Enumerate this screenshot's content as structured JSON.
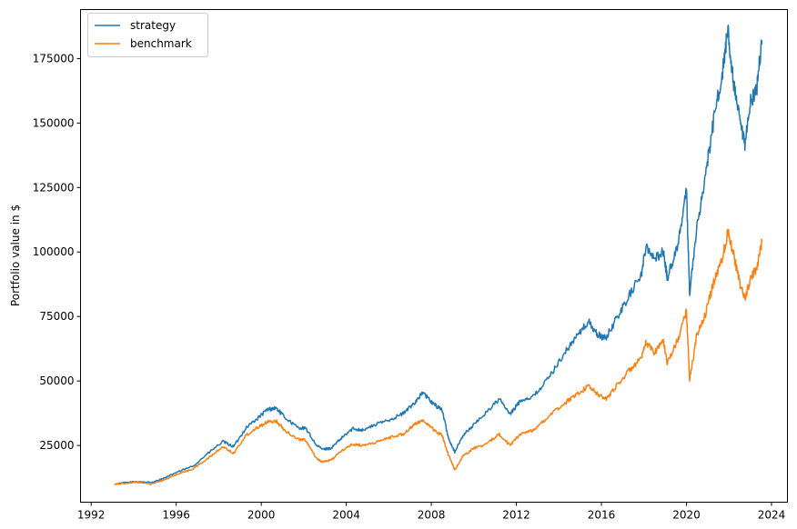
{
  "chart_data": {
    "type": "line",
    "title": "",
    "xlabel": "",
    "ylabel": "Portfolio value in $",
    "xlim": [
      1991.5,
      2024.75
    ],
    "ylim": [
      3000,
      194000
    ],
    "x_ticks": [
      1992,
      1996,
      2000,
      2004,
      2008,
      2012,
      2016,
      2020,
      2024
    ],
    "x_tick_labels": [
      "1992",
      "1996",
      "2000",
      "2004",
      "2008",
      "2012",
      "2016",
      "2020",
      "2024"
    ],
    "y_ticks": [
      25000,
      50000,
      75000,
      100000,
      125000,
      150000,
      175000
    ],
    "y_tick_labels": [
      "25000",
      "50000",
      "75000",
      "100000",
      "125000",
      "150000",
      "175000"
    ],
    "grid": false,
    "legend_position": "top-left",
    "colors": {
      "strategy": "#1f77b4",
      "benchmark": "#ff7f0e"
    },
    "series": [
      {
        "name": "strategy",
        "color": "#1f77b4",
        "points": [
          [
            1993.1,
            10000
          ],
          [
            1993.6,
            10600
          ],
          [
            1994.2,
            11000
          ],
          [
            1994.8,
            10600
          ],
          [
            1995.5,
            12500
          ],
          [
            1996.0,
            14500
          ],
          [
            1996.8,
            17000
          ],
          [
            1997.5,
            22000
          ],
          [
            1998.2,
            26500
          ],
          [
            1998.7,
            24500
          ],
          [
            1999.3,
            32000
          ],
          [
            1999.9,
            36000
          ],
          [
            2000.3,
            39000
          ],
          [
            2000.7,
            39500
          ],
          [
            2001.1,
            36000
          ],
          [
            2001.7,
            32000
          ],
          [
            2002.1,
            31500
          ],
          [
            2002.6,
            25000
          ],
          [
            2002.9,
            23500
          ],
          [
            2003.3,
            24000
          ],
          [
            2003.8,
            28000
          ],
          [
            2004.3,
            31500
          ],
          [
            2004.8,
            31000
          ],
          [
            2005.5,
            33500
          ],
          [
            2006.2,
            35500
          ],
          [
            2006.7,
            37500
          ],
          [
            2007.2,
            41500
          ],
          [
            2007.6,
            45500
          ],
          [
            2008.1,
            41000
          ],
          [
            2008.5,
            39000
          ],
          [
            2008.8,
            28000
          ],
          [
            2009.1,
            22500
          ],
          [
            2009.5,
            29000
          ],
          [
            2010.0,
            33000
          ],
          [
            2010.6,
            38000
          ],
          [
            2011.2,
            43000
          ],
          [
            2011.7,
            37000
          ],
          [
            2012.2,
            42500
          ],
          [
            2012.8,
            44000
          ],
          [
            2013.5,
            51000
          ],
          [
            2014.2,
            60000
          ],
          [
            2014.8,
            67000
          ],
          [
            2015.4,
            73000
          ],
          [
            2015.8,
            68000
          ],
          [
            2016.2,
            66500
          ],
          [
            2016.7,
            74000
          ],
          [
            2017.3,
            83000
          ],
          [
            2017.9,
            92000
          ],
          [
            2018.1,
            103000
          ],
          [
            2018.5,
            97000
          ],
          [
            2018.9,
            100500
          ],
          [
            2019.1,
            90000
          ],
          [
            2019.6,
            103000
          ],
          [
            2020.0,
            124000
          ],
          [
            2020.15,
            84000
          ],
          [
            2020.5,
            110000
          ],
          [
            2020.9,
            130000
          ],
          [
            2021.3,
            152000
          ],
          [
            2021.7,
            170000
          ],
          [
            2021.95,
            186000
          ],
          [
            2022.2,
            166000
          ],
          [
            2022.5,
            151000
          ],
          [
            2022.75,
            141000
          ],
          [
            2023.0,
            158000
          ],
          [
            2023.3,
            163000
          ],
          [
            2023.55,
            182000
          ]
        ]
      },
      {
        "name": "benchmark",
        "color": "#ff7f0e",
        "points": [
          [
            1993.1,
            10000
          ],
          [
            1993.6,
            10300
          ],
          [
            1994.2,
            10700
          ],
          [
            1994.8,
            10000
          ],
          [
            1995.5,
            11800
          ],
          [
            1996.0,
            13700
          ],
          [
            1996.8,
            16000
          ],
          [
            1997.5,
            20000
          ],
          [
            1998.2,
            24500
          ],
          [
            1998.7,
            22000
          ],
          [
            1999.3,
            29000
          ],
          [
            1999.9,
            32500
          ],
          [
            2000.3,
            34000
          ],
          [
            2000.7,
            34500
          ],
          [
            2001.1,
            31000
          ],
          [
            2001.7,
            27500
          ],
          [
            2002.1,
            27000
          ],
          [
            2002.6,
            20000
          ],
          [
            2002.9,
            18500
          ],
          [
            2003.3,
            19500
          ],
          [
            2003.8,
            23000
          ],
          [
            2004.3,
            25500
          ],
          [
            2004.8,
            25000
          ],
          [
            2005.5,
            26500
          ],
          [
            2006.2,
            28500
          ],
          [
            2006.7,
            29500
          ],
          [
            2007.2,
            33000
          ],
          [
            2007.6,
            35000
          ],
          [
            2008.1,
            31000
          ],
          [
            2008.5,
            29000
          ],
          [
            2008.8,
            21500
          ],
          [
            2009.1,
            15500
          ],
          [
            2009.5,
            21000
          ],
          [
            2010.0,
            24000
          ],
          [
            2010.6,
            25500
          ],
          [
            2011.2,
            29500
          ],
          [
            2011.7,
            25000
          ],
          [
            2012.2,
            29500
          ],
          [
            2012.8,
            31000
          ],
          [
            2013.5,
            36000
          ],
          [
            2014.2,
            41000
          ],
          [
            2014.8,
            44500
          ],
          [
            2015.4,
            48000
          ],
          [
            2015.8,
            45000
          ],
          [
            2016.2,
            43000
          ],
          [
            2016.7,
            48000
          ],
          [
            2017.3,
            54000
          ],
          [
            2017.9,
            59000
          ],
          [
            2018.1,
            65000
          ],
          [
            2018.5,
            61000
          ],
          [
            2018.9,
            66000
          ],
          [
            2019.1,
            57000
          ],
          [
            2019.6,
            66000
          ],
          [
            2020.0,
            77000
          ],
          [
            2020.15,
            50500
          ],
          [
            2020.5,
            68000
          ],
          [
            2020.9,
            76000
          ],
          [
            2021.3,
            89000
          ],
          [
            2021.7,
            98000
          ],
          [
            2021.95,
            108000
          ],
          [
            2022.2,
            100000
          ],
          [
            2022.5,
            88000
          ],
          [
            2022.75,
            82000
          ],
          [
            2023.0,
            89000
          ],
          [
            2023.3,
            94000
          ],
          [
            2023.55,
            104000
          ]
        ]
      }
    ]
  }
}
